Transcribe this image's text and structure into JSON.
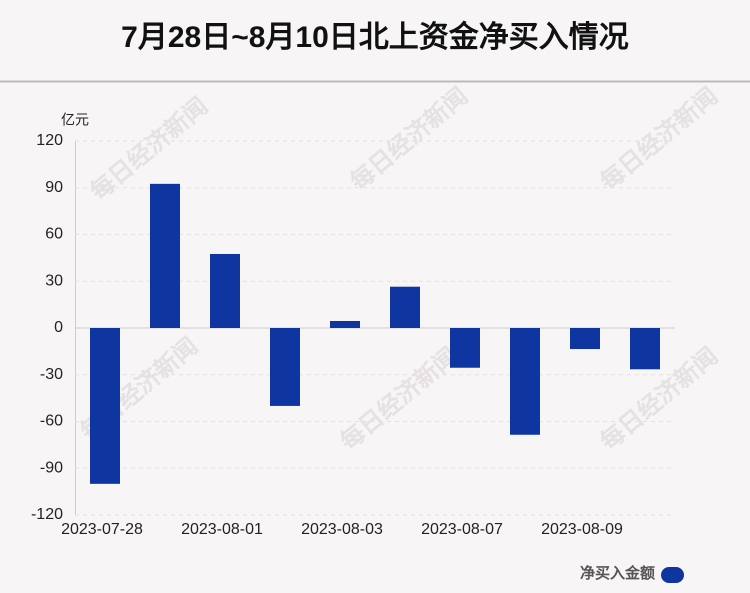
{
  "chart_data": {
    "type": "bar",
    "title": "7月28日~8月10日北上资金净买入情况",
    "y_unit": "亿元",
    "categories": [
      "2023-07-28",
      null,
      "2023-08-01",
      null,
      "2023-08-03",
      null,
      "2023-08-07",
      null,
      "2023-08-09",
      null
    ],
    "series": [
      {
        "name": "净买入金额",
        "color": "#0e35a0",
        "values": [
          -100,
          92.5,
          47.5,
          -50,
          4.5,
          26.5,
          -25.5,
          -68.5,
          -13.5,
          -26.5
        ]
      }
    ],
    "ylim": [
      -120,
      120
    ],
    "yticks": [
      -120,
      -90,
      -60,
      -30,
      0,
      30,
      60,
      90,
      120
    ],
    "grid": true,
    "watermark": "每日经济新闻"
  }
}
